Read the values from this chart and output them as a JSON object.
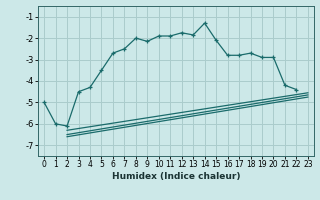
{
  "title": "",
  "xlabel": "Humidex (Indice chaleur)",
  "bg_color": "#cce8e8",
  "grid_color": "#aacccc",
  "line_color": "#1a6b6b",
  "xlim": [
    -0.5,
    23.5
  ],
  "ylim": [
    -7.5,
    -0.5
  ],
  "yticks": [
    -7,
    -6,
    -5,
    -4,
    -3,
    -2,
    -1
  ],
  "xticks": [
    0,
    1,
    2,
    3,
    4,
    5,
    6,
    7,
    8,
    9,
    10,
    11,
    12,
    13,
    14,
    15,
    16,
    17,
    18,
    19,
    20,
    21,
    22,
    23
  ],
  "line1_x": [
    0,
    1,
    2,
    3,
    4,
    5,
    6,
    7,
    8,
    9,
    10,
    11,
    12,
    13,
    14,
    15,
    16,
    17,
    18,
    19,
    20,
    21,
    22
  ],
  "line1_y": [
    -5.0,
    -6.0,
    -6.1,
    -4.5,
    -4.3,
    -3.5,
    -2.7,
    -2.5,
    -2.0,
    -2.15,
    -1.9,
    -1.9,
    -1.75,
    -1.85,
    -1.3,
    -2.1,
    -2.8,
    -2.8,
    -2.7,
    -2.9,
    -2.9,
    -4.2,
    -4.4
  ],
  "line2_x": [
    2,
    23
  ],
  "line2_y": [
    -6.3,
    -4.55
  ],
  "line3_x": [
    2,
    23
  ],
  "line3_y": [
    -6.5,
    -4.65
  ],
  "line4_x": [
    2,
    23
  ],
  "line4_y": [
    -6.6,
    -4.75
  ]
}
